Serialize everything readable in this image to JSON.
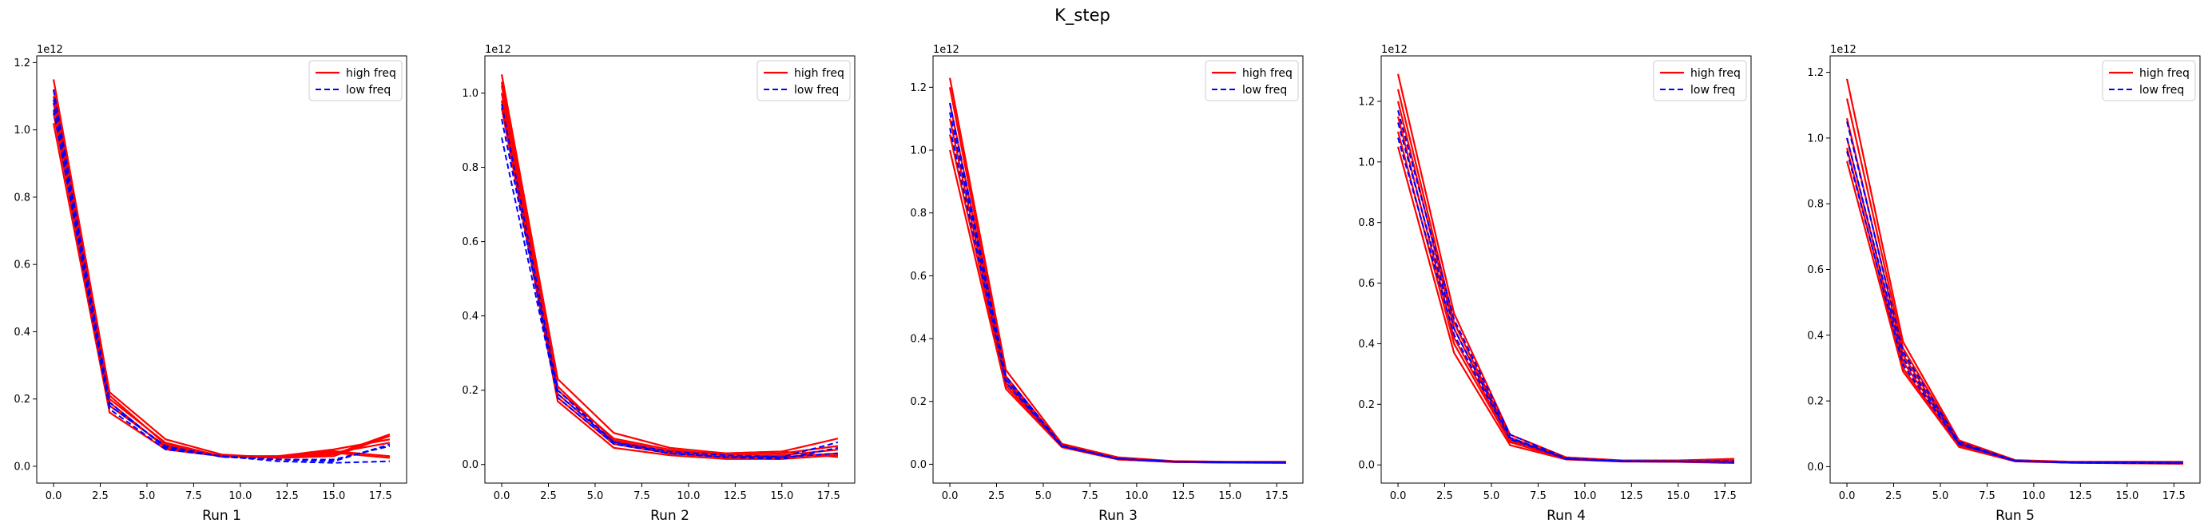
{
  "figure": {
    "title": "K_step"
  },
  "legend": {
    "high_label": "high freq",
    "low_label": "low freq",
    "high_color": "#ff0000",
    "low_color": "#0000ff"
  },
  "chart_data": [
    {
      "type": "line",
      "xlabel": "Run 1",
      "ylabel": "",
      "offset_text": "1e12",
      "xlim": [
        -0.9,
        18.9
      ],
      "ylim": [
        -0.05,
        1.22
      ],
      "xticks": [
        0.0,
        2.5,
        5.0,
        7.5,
        10.0,
        12.5,
        15.0,
        17.5
      ],
      "xtick_labels": [
        "0.0",
        "2.5",
        "5.0",
        "7.5",
        "10.0",
        "12.5",
        "15.0",
        "17.5"
      ],
      "yticks": [
        0.0,
        0.2,
        0.4,
        0.6,
        0.8,
        1.0,
        1.2
      ],
      "ytick_labels": [
        "0.0",
        "0.2",
        "0.4",
        "0.6",
        "0.8",
        "1.0",
        "1.2"
      ],
      "x": [
        0,
        3,
        6,
        9,
        12,
        15,
        18
      ],
      "legend_position": "upper right",
      "series": [
        {
          "group": "high",
          "values": [
            1.15,
            0.22,
            0.08,
            0.035,
            0.025,
            0.03,
            0.09
          ]
        },
        {
          "group": "high",
          "values": [
            1.1,
            0.2,
            0.07,
            0.03,
            0.025,
            0.035,
            0.095
          ]
        },
        {
          "group": "high",
          "values": [
            1.05,
            0.18,
            0.06,
            0.03,
            0.03,
            0.05,
            0.08
          ]
        },
        {
          "group": "high",
          "values": [
            1.02,
            0.16,
            0.05,
            0.03,
            0.03,
            0.04,
            0.025
          ]
        },
        {
          "group": "high",
          "values": [
            1.08,
            0.19,
            0.055,
            0.032,
            0.028,
            0.045,
            0.03
          ]
        },
        {
          "group": "high",
          "values": [
            1.12,
            0.21,
            0.065,
            0.028,
            0.03,
            0.04,
            0.07
          ]
        },
        {
          "group": "low",
          "values": [
            1.12,
            0.19,
            0.055,
            0.03,
            0.02,
            0.015,
            0.065
          ]
        },
        {
          "group": "low",
          "values": [
            1.06,
            0.17,
            0.05,
            0.03,
            0.015,
            0.01,
            0.015
          ]
        },
        {
          "group": "low",
          "values": [
            1.09,
            0.18,
            0.06,
            0.028,
            0.02,
            0.02,
            0.06
          ]
        }
      ]
    },
    {
      "type": "line",
      "xlabel": "Run 2",
      "ylabel": "",
      "offset_text": "1e12",
      "xlim": [
        -0.9,
        18.9
      ],
      "ylim": [
        -0.05,
        1.1
      ],
      "xticks": [
        0.0,
        2.5,
        5.0,
        7.5,
        10.0,
        12.5,
        15.0,
        17.5
      ],
      "xtick_labels": [
        "0.0",
        "2.5",
        "5.0",
        "7.5",
        "10.0",
        "12.5",
        "15.0",
        "17.5"
      ],
      "yticks": [
        0.0,
        0.2,
        0.4,
        0.6,
        0.8,
        1.0
      ],
      "ytick_labels": [
        "0.0",
        "0.2",
        "0.4",
        "0.6",
        "0.8",
        "1.0"
      ],
      "x": [
        0,
        3,
        6,
        9,
        12,
        15,
        18
      ],
      "legend_position": "upper right",
      "series": [
        {
          "group": "high",
          "values": [
            1.05,
            0.23,
            0.085,
            0.045,
            0.03,
            0.035,
            0.07
          ]
        },
        {
          "group": "high",
          "values": [
            1.02,
            0.2,
            0.07,
            0.04,
            0.025,
            0.03,
            0.05
          ]
        },
        {
          "group": "high",
          "values": [
            1.0,
            0.19,
            0.06,
            0.035,
            0.02,
            0.025,
            0.04
          ]
        },
        {
          "group": "high",
          "values": [
            0.98,
            0.18,
            0.055,
            0.03,
            0.02,
            0.02,
            0.03
          ]
        },
        {
          "group": "high",
          "values": [
            0.96,
            0.17,
            0.045,
            0.025,
            0.015,
            0.015,
            0.025
          ]
        },
        {
          "group": "high",
          "values": [
            1.03,
            0.21,
            0.065,
            0.035,
            0.03,
            0.035,
            0.02
          ]
        },
        {
          "group": "low",
          "values": [
            0.93,
            0.19,
            0.06,
            0.03,
            0.02,
            0.02,
            0.06
          ]
        },
        {
          "group": "low",
          "values": [
            0.88,
            0.18,
            0.055,
            0.03,
            0.02,
            0.015,
            0.045
          ]
        },
        {
          "group": "low",
          "values": [
            0.97,
            0.2,
            0.06,
            0.035,
            0.025,
            0.02,
            0.03
          ]
        }
      ]
    },
    {
      "type": "line",
      "xlabel": "Run 3",
      "ylabel": "",
      "offset_text": "1e12",
      "xlim": [
        -0.9,
        18.9
      ],
      "ylim": [
        -0.06,
        1.3
      ],
      "xticks": [
        0.0,
        2.5,
        5.0,
        7.5,
        10.0,
        12.5,
        15.0,
        17.5
      ],
      "xtick_labels": [
        "0.0",
        "2.5",
        "5.0",
        "7.5",
        "10.0",
        "12.5",
        "15.0",
        "17.5"
      ],
      "yticks": [
        0.0,
        0.2,
        0.4,
        0.6,
        0.8,
        1.0,
        1.2
      ],
      "ytick_labels": [
        "0.0",
        "0.2",
        "0.4",
        "0.6",
        "0.8",
        "1.0",
        "1.2"
      ],
      "x": [
        0,
        3,
        6,
        9,
        12,
        15,
        18
      ],
      "legend_position": "upper right",
      "series": [
        {
          "group": "high",
          "values": [
            1.23,
            0.3,
            0.065,
            0.022,
            0.01,
            0.008,
            0.008
          ]
        },
        {
          "group": "high",
          "values": [
            1.2,
            0.28,
            0.06,
            0.02,
            0.009,
            0.007,
            0.007
          ]
        },
        {
          "group": "high",
          "values": [
            1.15,
            0.27,
            0.058,
            0.018,
            0.008,
            0.006,
            0.006
          ]
        },
        {
          "group": "high",
          "values": [
            1.1,
            0.26,
            0.056,
            0.017,
            0.008,
            0.006,
            0.005
          ]
        },
        {
          "group": "high",
          "values": [
            1.05,
            0.25,
            0.055,
            0.016,
            0.007,
            0.005,
            0.005
          ]
        },
        {
          "group": "high",
          "values": [
            1.0,
            0.24,
            0.054,
            0.015,
            0.007,
            0.005,
            0.004
          ]
        },
        {
          "group": "low",
          "values": [
            1.15,
            0.28,
            0.06,
            0.018,
            0.008,
            0.006,
            0.005
          ]
        },
        {
          "group": "low",
          "values": [
            1.07,
            0.26,
            0.057,
            0.017,
            0.008,
            0.006,
            0.005
          ]
        },
        {
          "group": "low",
          "values": [
            1.12,
            0.27,
            0.058,
            0.018,
            0.008,
            0.006,
            0.005
          ]
        }
      ]
    },
    {
      "type": "line",
      "xlabel": "Run 4",
      "ylabel": "",
      "offset_text": "1e12",
      "xlim": [
        -0.9,
        18.9
      ],
      "ylim": [
        -0.06,
        1.35
      ],
      "xticks": [
        0.0,
        2.5,
        5.0,
        7.5,
        10.0,
        12.5,
        15.0,
        17.5
      ],
      "xtick_labels": [
        "0.0",
        "2.5",
        "5.0",
        "7.5",
        "10.0",
        "12.5",
        "15.0",
        "17.5"
      ],
      "yticks": [
        0.0,
        0.2,
        0.4,
        0.6,
        0.8,
        1.0,
        1.2
      ],
      "ytick_labels": [
        "0.0",
        "0.2",
        "0.4",
        "0.6",
        "0.8",
        "1.0",
        "1.2"
      ],
      "x": [
        0,
        3,
        6,
        9,
        12,
        15,
        18
      ],
      "legend_position": "upper right",
      "series": [
        {
          "group": "high",
          "values": [
            1.29,
            0.5,
            0.1,
            0.025,
            0.015,
            0.015,
            0.02
          ]
        },
        {
          "group": "high",
          "values": [
            1.24,
            0.47,
            0.09,
            0.022,
            0.014,
            0.013,
            0.015
          ]
        },
        {
          "group": "high",
          "values": [
            1.2,
            0.45,
            0.085,
            0.02,
            0.013,
            0.012,
            0.012
          ]
        },
        {
          "group": "high",
          "values": [
            1.15,
            0.42,
            0.08,
            0.02,
            0.012,
            0.011,
            0.01
          ]
        },
        {
          "group": "high",
          "values": [
            1.1,
            0.4,
            0.075,
            0.019,
            0.012,
            0.01,
            0.008
          ]
        },
        {
          "group": "high",
          "values": [
            1.05,
            0.37,
            0.065,
            0.018,
            0.011,
            0.01,
            0.006
          ]
        },
        {
          "group": "low",
          "values": [
            1.17,
            0.48,
            0.1,
            0.022,
            0.013,
            0.012,
            0.012
          ]
        },
        {
          "group": "low",
          "values": [
            1.13,
            0.45,
            0.09,
            0.02,
            0.012,
            0.011,
            0.01
          ]
        },
        {
          "group": "low",
          "values": [
            1.08,
            0.43,
            0.085,
            0.02,
            0.012,
            0.011,
            0.009
          ]
        }
      ]
    },
    {
      "type": "line",
      "xlabel": "Run 5",
      "ylabel": "",
      "offset_text": "1e12",
      "xlim": [
        -0.9,
        18.9
      ],
      "ylim": [
        -0.05,
        1.25
      ],
      "xticks": [
        0.0,
        2.5,
        5.0,
        7.5,
        10.0,
        12.5,
        15.0,
        17.5
      ],
      "xtick_labels": [
        "0.0",
        "2.5",
        "5.0",
        "7.5",
        "10.0",
        "12.5",
        "15.0",
        "17.5"
      ],
      "yticks": [
        0.0,
        0.2,
        0.4,
        0.6,
        0.8,
        1.0,
        1.2
      ],
      "ytick_labels": [
        "0.0",
        "0.2",
        "0.4",
        "0.6",
        "0.8",
        "1.0",
        "1.2"
      ],
      "x": [
        0,
        3,
        6,
        9,
        12,
        15,
        18
      ],
      "legend_position": "upper right",
      "series": [
        {
          "group": "high",
          "values": [
            1.18,
            0.38,
            0.08,
            0.02,
            0.015,
            0.015,
            0.015
          ]
        },
        {
          "group": "high",
          "values": [
            1.12,
            0.36,
            0.075,
            0.019,
            0.014,
            0.014,
            0.013
          ]
        },
        {
          "group": "high",
          "values": [
            1.06,
            0.34,
            0.072,
            0.018,
            0.013,
            0.013,
            0.012
          ]
        },
        {
          "group": "high",
          "values": [
            1.0,
            0.32,
            0.07,
            0.018,
            0.013,
            0.012,
            0.011
          ]
        },
        {
          "group": "high",
          "values": [
            0.97,
            0.3,
            0.065,
            0.017,
            0.012,
            0.011,
            0.01
          ]
        },
        {
          "group": "high",
          "values": [
            0.93,
            0.29,
            0.06,
            0.016,
            0.012,
            0.01,
            0.009
          ]
        },
        {
          "group": "low",
          "values": [
            1.05,
            0.35,
            0.075,
            0.018,
            0.013,
            0.013,
            0.012
          ]
        },
        {
          "group": "low",
          "values": [
            1.0,
            0.33,
            0.07,
            0.017,
            0.012,
            0.012,
            0.011
          ]
        },
        {
          "group": "low",
          "values": [
            0.96,
            0.31,
            0.068,
            0.017,
            0.012,
            0.011,
            0.01
          ]
        }
      ]
    }
  ]
}
